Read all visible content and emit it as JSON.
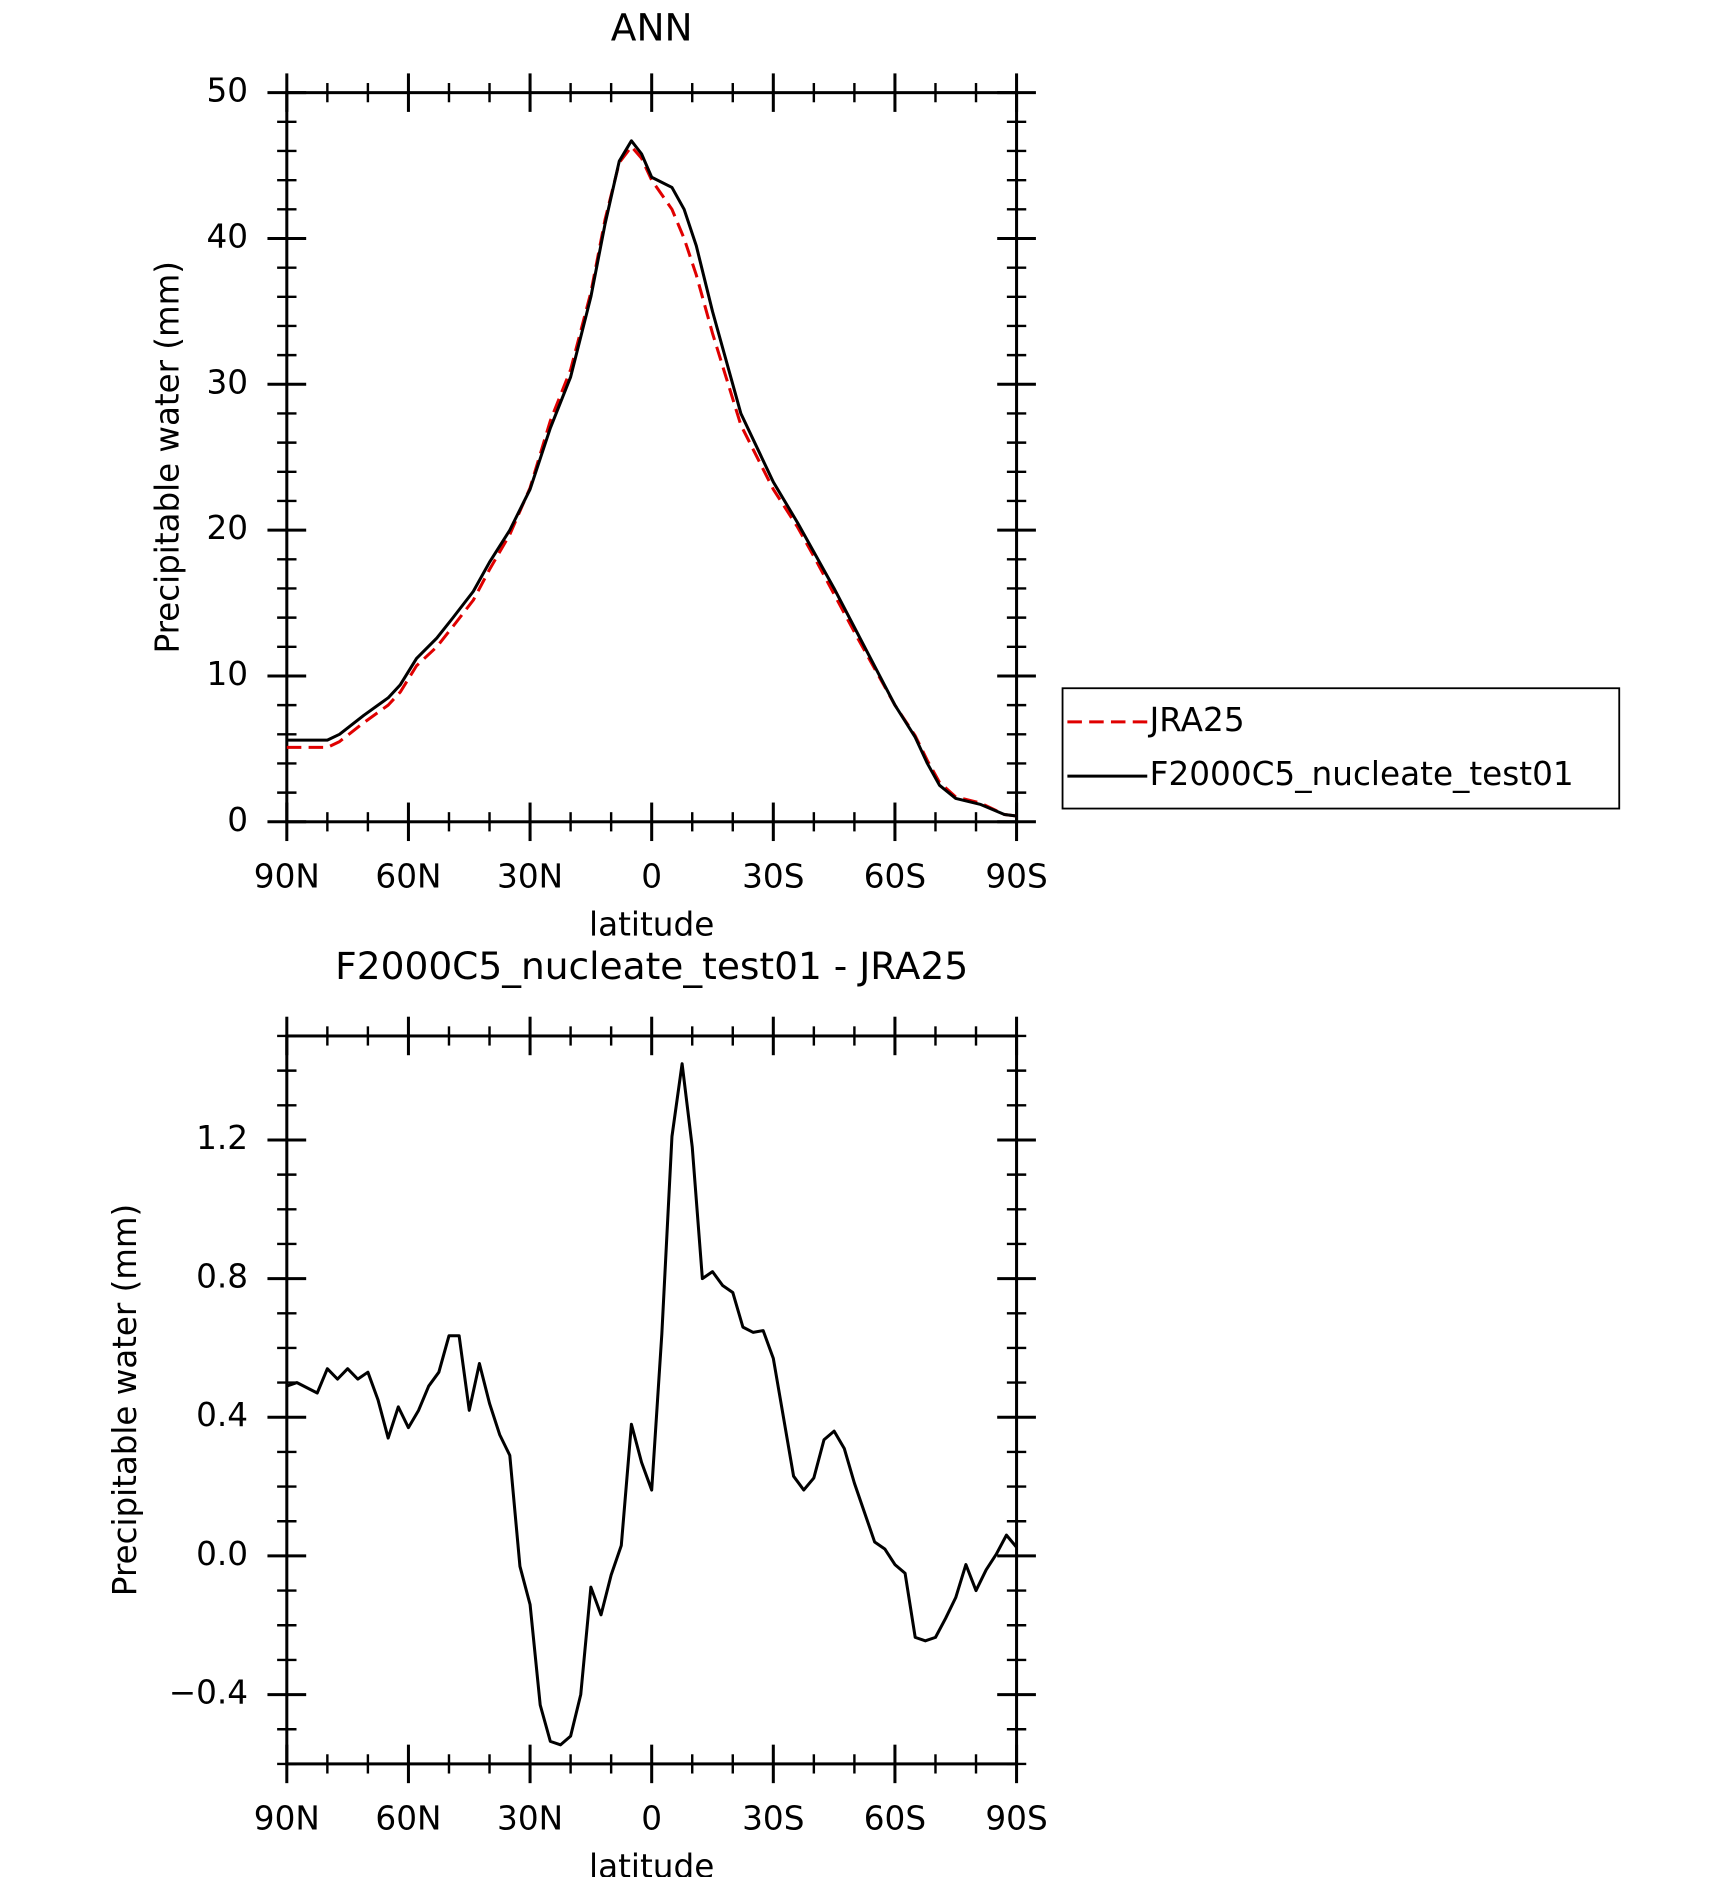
{
  "chart_data": [
    {
      "type": "line",
      "title": "ANN",
      "x_label": "latitude",
      "y_label": "Precipitable water (mm)",
      "x": [
        90,
        85,
        80,
        77,
        71,
        65,
        62,
        58,
        53,
        49,
        44,
        40,
        35,
        30,
        25,
        20,
        15,
        11.5,
        8,
        5,
        2.5,
        0,
        -5,
        -8,
        -11,
        -15,
        -18,
        -22,
        -30,
        -36,
        -40,
        -45,
        -51,
        -60,
        -65,
        -68,
        -71,
        -75,
        -81,
        -87,
        -90
      ],
      "xlim": [
        90,
        -90
      ],
      "xticks": [
        {
          "value": 90,
          "label": "90N"
        },
        {
          "value": 60,
          "label": "60N"
        },
        {
          "value": 30,
          "label": "30N"
        },
        0,
        {
          "value": -30,
          "label": "30S"
        },
        {
          "value": -60,
          "label": "60S"
        },
        {
          "value": -90,
          "label": "90S"
        }
      ],
      "ylim": [
        0,
        50
      ],
      "yticks": [
        0,
        10,
        20,
        30,
        40,
        50
      ],
      "legend": "right",
      "series": [
        {
          "name": "JRA25",
          "color": "#e00000",
          "style": "dashed",
          "values": [
            5.1,
            5.1,
            5.1,
            5.5,
            6.8,
            8.0,
            8.9,
            10.7,
            12.0,
            13.4,
            15.2,
            17.3,
            19.7,
            22.9,
            27.5,
            31,
            36.3,
            41.3,
            45.2,
            46.3,
            45.5,
            44,
            42,
            40,
            37.5,
            33.5,
            30.8,
            27.2,
            22.8,
            20.2,
            18.2,
            15.6,
            12.5,
            8.0,
            5.9,
            4.2,
            2.7,
            1.7,
            1.3,
            0.5,
            0.4
          ]
        },
        {
          "name": "F2000C5_nucleate_test01",
          "color": "#000000",
          "style": "solid",
          "values": [
            5.6,
            5.6,
            5.6,
            6.0,
            7.3,
            8.5,
            9.4,
            11.2,
            12.6,
            14.0,
            15.8,
            17.8,
            20.0,
            22.8,
            27.0,
            30.5,
            36,
            41,
            45.3,
            46.7,
            45.8,
            44.2,
            43.5,
            42.0,
            39.5,
            35,
            32,
            28,
            23.3,
            20.5,
            18.5,
            16,
            12.8,
            8.0,
            5.8,
            4.0,
            2.5,
            1.6,
            1.2,
            0.5,
            0.4
          ]
        }
      ]
    },
    {
      "type": "line",
      "title": "F2000C5_nucleate_test01 - JRA25",
      "x_label": "latitude",
      "y_label": "Precipitable water (mm)",
      "x": [
        90,
        87.5,
        82.5,
        80,
        77.5,
        75,
        72.5,
        70,
        67.5,
        65,
        62.5,
        60,
        57.5,
        55,
        52.5,
        50,
        47.5,
        45,
        42.5,
        40,
        37.5,
        35,
        32.5,
        30,
        27.5,
        25,
        22.5,
        20,
        17.5,
        15,
        12.5,
        10,
        7.5,
        5,
        2.5,
        0,
        -2.5,
        -5,
        -7.5,
        -10,
        -12.5,
        -15,
        -17.5,
        -20,
        -22.5,
        -25,
        -27.5,
        -30,
        -32.5,
        -35,
        -37.5,
        -40,
        -42.5,
        -45,
        -47.5,
        -50,
        -52.5,
        -55,
        -57.5,
        -60,
        -62.5,
        -65,
        -67.5,
        -70,
        -72.5,
        -75,
        -77.5,
        -80,
        -82.5,
        -85,
        -87.5,
        -90
      ],
      "xlim": [
        90,
        -90
      ],
      "xticks": [
        {
          "value": 90,
          "label": "90N"
        },
        {
          "value": 60,
          "label": "60N"
        },
        {
          "value": 30,
          "label": "30N"
        },
        0,
        {
          "value": -30,
          "label": "30S"
        },
        {
          "value": -60,
          "label": "60S"
        },
        {
          "value": -90,
          "label": "90S"
        }
      ],
      "ylim": [
        -0.6,
        1.5
      ],
      "yticks": [
        {
          "value": -0.4,
          "label": "−0.4"
        },
        {
          "value": 0,
          "label": "0.0"
        },
        0.4,
        0.8,
        1.2
      ],
      "series": [
        {
          "name": "F2000C5_nucleate_test01 - JRA25",
          "color": "#000000",
          "style": "solid",
          "values": [
            0.49,
            0.5,
            0.47,
            0.54,
            0.51,
            0.54,
            0.51,
            0.53,
            0.45,
            0.34,
            0.43,
            0.37,
            0.42,
            0.49,
            0.53,
            0.635,
            0.635,
            0.42,
            0.555,
            0.44,
            0.35,
            0.29,
            -0.03,
            -0.14,
            -0.43,
            -0.535,
            -0.545,
            -0.52,
            -0.4,
            -0.09,
            -0.17,
            -0.055,
            0.03,
            0.38,
            0.27,
            0.19,
            0.64,
            1.21,
            1.42,
            1.18,
            0.8,
            0.82,
            0.78,
            0.76,
            0.66,
            0.645,
            0.65,
            0.57,
            0.4,
            0.23,
            0.19,
            0.225,
            0.335,
            0.36,
            0.31,
            0.21,
            0.125,
            0.04,
            0.02,
            -0.025,
            -0.05,
            -0.235,
            -0.245,
            -0.235,
            -0.18,
            -0.12,
            -0.025,
            -0.1,
            -0.04,
            0.005,
            0.06,
            0.025
          ]
        }
      ]
    }
  ]
}
